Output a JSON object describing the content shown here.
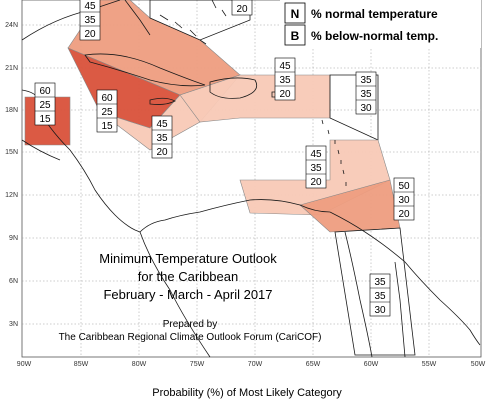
{
  "title": {
    "line1": "Minimum Temperature Outlook",
    "line2": "for the Caribbean",
    "line3": "February - March - April 2017"
  },
  "prepared": {
    "line1": "Prepared by",
    "line2": "The Caribbean Regional Climate Outlook Forum (CariCOF)"
  },
  "footer": "Probability (%) of Most Likely Category",
  "legend": [
    {
      "letter": "N",
      "text": "% normal temperature"
    },
    {
      "letter": "B",
      "text": "% below-normal temp."
    }
  ],
  "lat_labels": [
    "24N",
    "21N",
    "18N",
    "15N",
    "12N",
    "9N",
    "6N",
    "3N"
  ],
  "lon_labels": [
    "90W",
    "85W",
    "80W",
    "75W",
    "70W",
    "65W",
    "60W",
    "55W",
    "50W"
  ],
  "colors": {
    "light": "#f8c9b6",
    "medium": "#ee9d80",
    "dark": "#d9513a",
    "coast": "#1a1a1a",
    "outline": "#888888"
  },
  "regions": [
    {
      "id": "bahamas",
      "fill": "medium",
      "stack": [
        "45",
        "35",
        "20"
      ]
    },
    {
      "id": "hispaniola-north",
      "fill": "none",
      "stack": [
        "20"
      ]
    },
    {
      "id": "belize-central-america",
      "fill": "dark",
      "stack": [
        "60",
        "25",
        "15"
      ]
    },
    {
      "id": "cayman-jamaica",
      "fill": "dark",
      "stack": [
        "60",
        "25",
        "15"
      ]
    },
    {
      "id": "jamaica-south",
      "fill": "light",
      "stack": [
        "45",
        "35",
        "20"
      ]
    },
    {
      "id": "greater-antilles-east",
      "fill": "light",
      "stack": [
        "45",
        "35",
        "20"
      ]
    },
    {
      "id": "leeward-islands",
      "fill": "none",
      "stack": [
        "35",
        "35",
        "30"
      ]
    },
    {
      "id": "windward-islands",
      "fill": "light",
      "stack": [
        "45",
        "35",
        "20"
      ]
    },
    {
      "id": "trinidad-guyana",
      "fill": "medium",
      "stack": [
        "50",
        "30",
        "20"
      ]
    },
    {
      "id": "guianas",
      "fill": "none",
      "stack": [
        "35",
        "35",
        "30"
      ]
    }
  ]
}
